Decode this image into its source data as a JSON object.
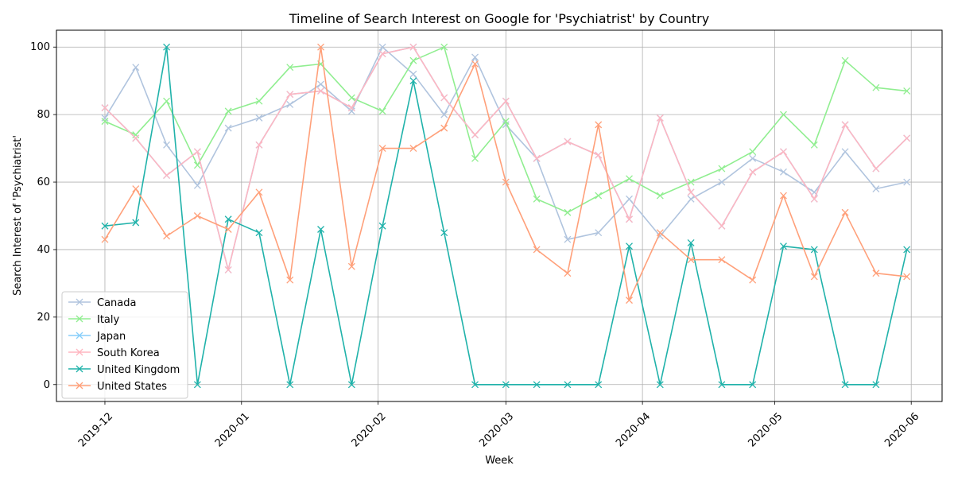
{
  "chart_data": {
    "type": "line",
    "title": "Timeline of Search Interest on Google for 'Psychiatrist' by Country",
    "xlabel": "Week",
    "ylabel": "Search Interest of 'Psychiatrist'",
    "ylim": [
      -5,
      105
    ],
    "yticks": [
      0,
      20,
      40,
      60,
      80,
      100
    ],
    "xticks": [
      "2019-12",
      "2020-01",
      "2020-02",
      "2020-03",
      "2020-04",
      "2020-05",
      "2020-06"
    ],
    "xtick_dates": [
      "2019-12-01",
      "2020-01-01",
      "2020-02-01",
      "2020-03-01",
      "2020-04-01",
      "2020-05-01",
      "2020-06-01"
    ],
    "xlim": [
      "2019-11-20",
      "2020-06-08"
    ],
    "grid": true,
    "legend_position": "lower left",
    "marker": "x",
    "x": [
      "2019-12-01",
      "2019-12-08",
      "2019-12-15",
      "2019-12-22",
      "2019-12-29",
      "2020-01-05",
      "2020-01-12",
      "2020-01-19",
      "2020-01-26",
      "2020-02-02",
      "2020-02-09",
      "2020-02-16",
      "2020-02-23",
      "2020-03-01",
      "2020-03-08",
      "2020-03-15",
      "2020-03-22",
      "2020-03-29",
      "2020-04-05",
      "2020-04-12",
      "2020-04-19",
      "2020-04-26",
      "2020-05-03",
      "2020-05-10",
      "2020-05-17",
      "2020-05-24",
      "2020-05-31"
    ],
    "series": [
      {
        "name": "Canada",
        "color": "#b0c4de",
        "values": [
          79,
          94,
          71,
          59,
          76,
          79,
          83,
          89,
          81,
          100,
          92,
          80,
          97,
          77,
          67,
          43,
          45,
          55,
          44,
          55,
          60,
          67,
          63,
          57,
          69,
          58,
          60
        ]
      },
      {
        "name": "Italy",
        "color": "#90ee90",
        "values": [
          78,
          74,
          84,
          65,
          81,
          84,
          94,
          95,
          85,
          81,
          96,
          100,
          67,
          78,
          55,
          51,
          56,
          61,
          56,
          60,
          64,
          69,
          80,
          71,
          96,
          88,
          87
        ]
      },
      {
        "name": "Japan",
        "color": "#87cefa",
        "values": [
          82,
          73,
          62,
          69,
          34,
          71,
          86,
          87,
          82,
          98,
          100,
          85,
          74,
          84,
          67,
          72,
          68,
          49,
          79,
          57,
          47,
          63,
          69,
          55,
          77,
          64,
          73
        ]
      },
      {
        "name": "South Korea",
        "color": "#ffb6c1",
        "values": [
          82,
          73,
          62,
          69,
          34,
          71,
          86,
          87,
          82,
          98,
          100,
          85,
          74,
          84,
          67,
          72,
          68,
          49,
          79,
          57,
          47,
          63,
          69,
          55,
          77,
          64,
          73
        ]
      },
      {
        "name": "United Kingdom",
        "color": "#20b2aa",
        "values": [
          47,
          48,
          100,
          0,
          49,
          45,
          0,
          46,
          0,
          47,
          90,
          45,
          0,
          0,
          0,
          0,
          0,
          41,
          0,
          42,
          0,
          0,
          41,
          40,
          0,
          0,
          40
        ]
      },
      {
        "name": "United States",
        "color": "#ffa07a",
        "values": [
          43,
          58,
          44,
          50,
          46,
          57,
          31,
          100,
          35,
          70,
          70,
          76,
          95,
          60,
          40,
          33,
          77,
          25,
          45,
          37,
          37,
          31,
          56,
          32,
          51,
          33,
          32
        ]
      }
    ]
  }
}
